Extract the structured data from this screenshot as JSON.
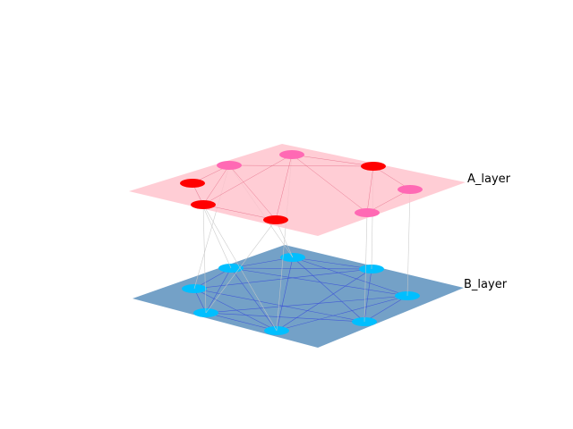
{
  "diagram": {
    "type": "multilayer-network",
    "layers": [
      {
        "id": "A",
        "label": "A_layer",
        "plane_color": "#ffc0cb",
        "edge_color": "#e05a78",
        "nodes": [
          {
            "id": "a1",
            "color": "#ff0000"
          },
          {
            "id": "a2",
            "color": "#ff69b4"
          },
          {
            "id": "a3",
            "color": "#ff0000"
          },
          {
            "id": "a4",
            "color": "#ff0000"
          },
          {
            "id": "a5",
            "color": "#ff69b4"
          },
          {
            "id": "a6",
            "color": "#ff0000"
          },
          {
            "id": "a7",
            "color": "#ff69b4"
          },
          {
            "id": "a8",
            "color": "#ff69b4"
          }
        ],
        "edges": [
          [
            "a1",
            "a2"
          ],
          [
            "a2",
            "a3"
          ],
          [
            "a3",
            "a4"
          ],
          [
            "a4",
            "a5"
          ],
          [
            "a1",
            "a3"
          ],
          [
            "a2",
            "a6"
          ],
          [
            "a6",
            "a5"
          ],
          [
            "a5",
            "a8"
          ],
          [
            "a6",
            "a7"
          ],
          [
            "a7",
            "a8"
          ],
          [
            "a2",
            "a4"
          ],
          [
            "a6",
            "a8"
          ],
          [
            "a3",
            "a5"
          ]
        ]
      },
      {
        "id": "B",
        "label": "B_layer",
        "plane_color": "#4682b4",
        "edge_color": "#3a4fd8",
        "nodes": [
          {
            "id": "b1",
            "color": "#00bfff"
          },
          {
            "id": "b2",
            "color": "#00bfff"
          },
          {
            "id": "b3",
            "color": "#00bfff"
          },
          {
            "id": "b4",
            "color": "#00bfff"
          },
          {
            "id": "b5",
            "color": "#00bfff"
          },
          {
            "id": "b6",
            "color": "#00bfff"
          },
          {
            "id": "b7",
            "color": "#00bfff"
          },
          {
            "id": "b8",
            "color": "#00bfff"
          }
        ],
        "edges": [
          [
            "b1",
            "b2"
          ],
          [
            "b1",
            "b3"
          ],
          [
            "b1",
            "b4"
          ],
          [
            "b1",
            "b5"
          ],
          [
            "b1",
            "b6"
          ],
          [
            "b1",
            "b7"
          ],
          [
            "b2",
            "b3"
          ],
          [
            "b2",
            "b5"
          ],
          [
            "b2",
            "b6"
          ],
          [
            "b2",
            "b8"
          ],
          [
            "b3",
            "b5"
          ],
          [
            "b3",
            "b7"
          ],
          [
            "b4",
            "b5"
          ],
          [
            "b4",
            "b6"
          ],
          [
            "b4",
            "b8"
          ],
          [
            "b5",
            "b6"
          ],
          [
            "b5",
            "b7"
          ],
          [
            "b6",
            "b8"
          ],
          [
            "b7",
            "b8"
          ],
          [
            "b3",
            "b8"
          ],
          [
            "b4",
            "b7"
          ]
        ]
      }
    ],
    "interlayer_edges": [
      [
        "a1",
        "b1"
      ],
      [
        "a2",
        "b2"
      ],
      [
        "a3",
        "b3"
      ],
      [
        "a4",
        "b4"
      ],
      [
        "a5",
        "b5"
      ],
      [
        "a6",
        "b6"
      ],
      [
        "a7",
        "b7"
      ],
      [
        "a8",
        "b8"
      ],
      [
        "a2",
        "b4"
      ],
      [
        "a3",
        "b5"
      ],
      [
        "a4",
        "b3"
      ]
    ],
    "interlayer_edge_color": "#c8c8c8"
  }
}
